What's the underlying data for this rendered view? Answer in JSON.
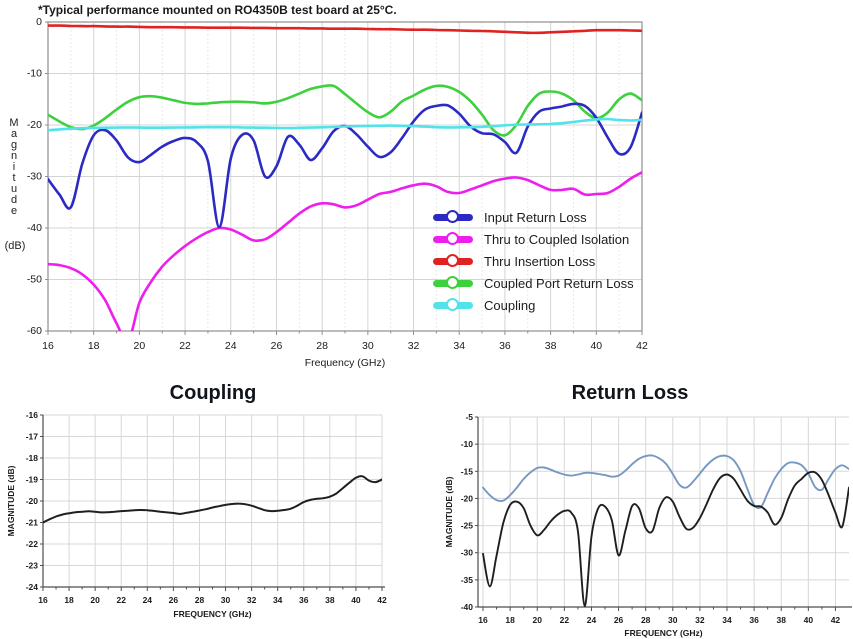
{
  "page": {
    "background": "#ffffff"
  },
  "chart_data": [
    {
      "id": "main",
      "type": "line",
      "title": "*Typical performance mounted on RO4350B test board at 25°C.",
      "xlabel": "Frequency (GHz)",
      "ylabel": "Magnitude",
      "ylabel_unit": "(dB)",
      "xlim": [
        16,
        42
      ],
      "ylim": [
        -60,
        0
      ],
      "x_ticks": [
        16,
        18,
        20,
        22,
        24,
        26,
        28,
        30,
        32,
        34,
        36,
        38,
        40,
        42
      ],
      "y_ticks": [
        0,
        -10,
        -20,
        -30,
        -40,
        -50,
        -60
      ],
      "grid": {
        "major": true,
        "minor_x_dotted": true
      },
      "legend_position": "inside-right-bottom",
      "x_start": 16,
      "x_step": 0.5,
      "series": [
        {
          "name": "Input Return Loss",
          "color": "#2b2bc4",
          "values": [
            -30.5,
            -33.5,
            -36.0,
            -27.5,
            -22.0,
            -21.0,
            -23.0,
            -26.3,
            -27.2,
            -25.8,
            -24.2,
            -23.1,
            -22.5,
            -23.3,
            -27.0,
            -39.8,
            -26.5,
            -21.9,
            -23.0,
            -30.0,
            -28.0,
            -22.3,
            -23.8,
            -26.8,
            -24.5,
            -21.2,
            -20.2,
            -21.8,
            -24.2,
            -26.2,
            -25.3,
            -22.5,
            -19.3,
            -17.0,
            -16.3,
            -16.2,
            -17.8,
            -20.3,
            -21.6,
            -21.8,
            -23.3,
            -25.4,
            -20.3,
            -17.4,
            -16.8,
            -16.4,
            -15.9,
            -16.3,
            -18.6,
            -22.4,
            -25.6,
            -24.3,
            -17.6
          ]
        },
        {
          "name": "Thru to Coupled Isolation",
          "color": "#ee1eee",
          "values": [
            -47.0,
            -47.2,
            -47.8,
            -49.0,
            -51.0,
            -54.0,
            -58.5,
            -62.0,
            -54.5,
            -50.5,
            -47.5,
            -45.3,
            -43.5,
            -42.0,
            -40.8,
            -40.0,
            -40.3,
            -41.3,
            -42.4,
            -42.2,
            -40.8,
            -39.0,
            -37.2,
            -35.8,
            -35.2,
            -35.4,
            -36.0,
            -35.6,
            -34.5,
            -33.4,
            -33.0,
            -32.3,
            -31.7,
            -31.4,
            -31.9,
            -33.0,
            -33.2,
            -32.5,
            -31.7,
            -30.9,
            -30.4,
            -30.2,
            -30.7,
            -31.7,
            -32.6,
            -32.6,
            -32.4,
            -33.5,
            -33.4,
            -33.2,
            -32.0,
            -30.4,
            -29.2
          ]
        },
        {
          "name": "Thru Insertion Loss",
          "color": "#e02222",
          "values": [
            -0.7,
            -0.7,
            -0.75,
            -0.8,
            -0.8,
            -0.85,
            -0.9,
            -0.9,
            -0.95,
            -1.0,
            -1.0,
            -1.0,
            -1.05,
            -1.05,
            -1.1,
            -1.1,
            -1.1,
            -1.1,
            -1.15,
            -1.15,
            -1.2,
            -1.2,
            -1.2,
            -1.25,
            -1.25,
            -1.3,
            -1.3,
            -1.3,
            -1.35,
            -1.4,
            -1.4,
            -1.45,
            -1.5,
            -1.5,
            -1.55,
            -1.6,
            -1.65,
            -1.7,
            -1.75,
            -1.8,
            -1.9,
            -2.0,
            -2.1,
            -2.1,
            -2.0,
            -1.9,
            -1.8,
            -1.7,
            -1.6,
            -1.6,
            -1.6,
            -1.65,
            -1.7
          ]
        },
        {
          "name": "Coupled Port Return Loss",
          "color": "#3ed13e",
          "values": [
            -18.0,
            -19.3,
            -20.4,
            -20.8,
            -20.1,
            -18.7,
            -17.0,
            -15.5,
            -14.6,
            -14.4,
            -14.7,
            -15.2,
            -15.7,
            -15.9,
            -15.8,
            -15.6,
            -15.5,
            -15.5,
            -15.6,
            -15.8,
            -15.5,
            -14.8,
            -13.9,
            -13.0,
            -12.5,
            -12.4,
            -14.0,
            -15.8,
            -17.5,
            -18.5,
            -17.4,
            -15.4,
            -14.3,
            -13.1,
            -12.4,
            -12.6,
            -13.6,
            -15.4,
            -18.0,
            -21.0,
            -22.0,
            -20.0,
            -16.3,
            -13.9,
            -13.5,
            -13.9,
            -15.2,
            -17.4,
            -18.7,
            -17.6,
            -15.0,
            -13.9,
            -15.2
          ]
        },
        {
          "name": "Coupling",
          "color": "#52e2ea",
          "values": [
            -21.0,
            -20.85,
            -20.72,
            -20.63,
            -20.57,
            -20.52,
            -20.5,
            -20.48,
            -20.5,
            -20.53,
            -20.52,
            -20.5,
            -20.47,
            -20.45,
            -20.43,
            -20.42,
            -20.43,
            -20.46,
            -20.5,
            -20.53,
            -20.56,
            -20.6,
            -20.55,
            -20.5,
            -20.44,
            -20.38,
            -20.3,
            -20.24,
            -20.18,
            -20.14,
            -20.12,
            -20.15,
            -20.22,
            -20.32,
            -20.43,
            -20.47,
            -20.45,
            -20.42,
            -20.36,
            -20.22,
            -20.05,
            -19.95,
            -19.9,
            -19.87,
            -19.8,
            -19.65,
            -19.4,
            -19.15,
            -18.92,
            -18.85,
            -19.05,
            -19.12,
            -19.0
          ]
        }
      ],
      "draw_order": [
        1,
        2,
        3,
        0,
        4
      ]
    },
    {
      "id": "coupling",
      "type": "line",
      "title": "Coupling",
      "xlabel": "FREQUENCY (GHz)",
      "ylabel": "MAGNITUDE (dB)",
      "xlim": [
        16,
        42
      ],
      "ylim": [
        -24,
        -16
      ],
      "x_ticks": [
        16,
        18,
        20,
        22,
        24,
        26,
        28,
        30,
        32,
        34,
        36,
        38,
        40,
        42
      ],
      "y_ticks": [
        -16,
        -17,
        -18,
        -19,
        -20,
        -21,
        -22,
        -23,
        -24
      ],
      "grid": {
        "major": true
      },
      "x_start": 16,
      "x_step": 0.5,
      "series": [
        {
          "name": "Coupling",
          "color": "#1f1f1f",
          "values": [
            -21.0,
            -20.85,
            -20.72,
            -20.63,
            -20.57,
            -20.52,
            -20.5,
            -20.48,
            -20.5,
            -20.53,
            -20.52,
            -20.5,
            -20.47,
            -20.45,
            -20.43,
            -20.42,
            -20.43,
            -20.46,
            -20.5,
            -20.53,
            -20.56,
            -20.6,
            -20.55,
            -20.5,
            -20.44,
            -20.38,
            -20.3,
            -20.24,
            -20.18,
            -20.14,
            -20.12,
            -20.15,
            -20.22,
            -20.32,
            -20.43,
            -20.47,
            -20.45,
            -20.42,
            -20.36,
            -20.22,
            -20.05,
            -19.95,
            -19.9,
            -19.87,
            -19.8,
            -19.65,
            -19.4,
            -19.15,
            -18.92,
            -18.85,
            -19.05,
            -19.12,
            -19.0
          ]
        }
      ],
      "draw_order": [
        0
      ]
    },
    {
      "id": "rl",
      "type": "line",
      "title": "Return Loss",
      "xlabel": "FREQUENCY (GHz)",
      "ylabel": "MAGNITUDE (dB)",
      "xlim": [
        15.63,
        43.0
      ],
      "ylim": [
        -40,
        -5
      ],
      "x_ticks": [
        16,
        18,
        20,
        22,
        24,
        26,
        28,
        30,
        32,
        34,
        36,
        38,
        40,
        42
      ],
      "y_ticks": [
        -5,
        -10,
        -15,
        -20,
        -25,
        -30,
        -35,
        -40
      ],
      "grid": {
        "major": true
      },
      "x_start": 16,
      "x_step": 0.5,
      "series": [
        {
          "name": "Coupled Port Return Loss",
          "color": "#7598c2",
          "values": [
            -18.0,
            -19.4,
            -20.3,
            -20.4,
            -19.4,
            -18.0,
            -16.4,
            -15.2,
            -14.4,
            -14.3,
            -14.7,
            -15.2,
            -15.6,
            -15.8,
            -15.6,
            -15.3,
            -15.3,
            -15.5,
            -15.7,
            -16.0,
            -15.8,
            -14.9,
            -13.7,
            -12.7,
            -12.2,
            -12.1,
            -12.6,
            -13.6,
            -15.5,
            -17.5,
            -18.0,
            -16.9,
            -15.4,
            -13.9,
            -12.8,
            -12.2,
            -12.2,
            -13.0,
            -15.0,
            -18.2,
            -21.2,
            -21.6,
            -19.0,
            -16.4,
            -14.6,
            -13.5,
            -13.4,
            -13.9,
            -15.4,
            -17.9,
            -18.4,
            -16.4,
            -14.6,
            -13.9,
            -14.6
          ]
        },
        {
          "name": "Input Return Loss",
          "color": "#1f1f1f",
          "values": [
            -30.2,
            -36.2,
            -30.5,
            -24.5,
            -21.2,
            -20.6,
            -21.8,
            -25.0,
            -26.8,
            -25.8,
            -24.2,
            -23.0,
            -22.3,
            -22.6,
            -26.0,
            -39.8,
            -27.0,
            -21.8,
            -21.5,
            -24.0,
            -30.5,
            -26.0,
            -21.4,
            -21.8,
            -25.5,
            -26.0,
            -21.8,
            -19.8,
            -20.6,
            -23.4,
            -25.6,
            -25.4,
            -23.6,
            -21.0,
            -18.2,
            -16.2,
            -15.6,
            -16.4,
            -18.4,
            -20.4,
            -21.4,
            -21.5,
            -22.6,
            -24.8,
            -23.6,
            -20.2,
            -17.6,
            -16.4,
            -15.3,
            -15.2,
            -16.6,
            -19.4,
            -22.6,
            -25.2,
            -18.0
          ]
        }
      ],
      "draw_order": [
        0,
        1
      ]
    }
  ]
}
